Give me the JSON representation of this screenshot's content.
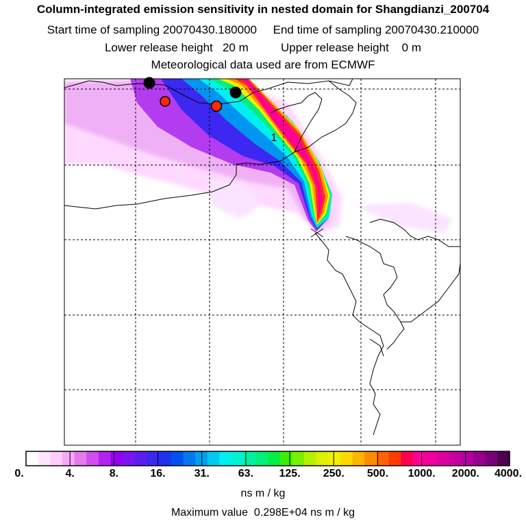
{
  "title": {
    "line1": "Column-integrated emission sensitivity in nested domain for Shangdianzi_200704",
    "line2": "Start time of sampling 20070430.180000     End time of sampling 20070430.210000",
    "line3": "Lower release height   20 m          Upper release height    0 m",
    "line4": "Meteorological data used are from ECMWF"
  },
  "map": {
    "plume_label": "1",
    "markers": [
      {
        "name": "black-dot-1",
        "color": "#000000"
      },
      {
        "name": "black-dot-2",
        "color": "#000000"
      },
      {
        "name": "red-dot-1",
        "color": "#ff2a00"
      },
      {
        "name": "red-dot-2",
        "color": "#ff2a00"
      }
    ]
  },
  "colorbar": {
    "tick_labels": [
      "0.",
      "4.",
      "8.",
      "16.",
      "31.",
      "63.",
      "125.",
      "250.",
      "500.",
      "1000.",
      "2000.",
      "4000."
    ],
    "colors": [
      "#ffffff",
      "#ffe6ff",
      "#ffccff",
      "#f7a8f7",
      "#e678f0",
      "#d24cf0",
      "#b422f0",
      "#9600f0",
      "#7a14f0",
      "#5a1ef0",
      "#3c28f0",
      "#1e32f0",
      "#0050f0",
      "#0078f0",
      "#00a0f0",
      "#00c8f0",
      "#00f0f0",
      "#00f0d2",
      "#00f0a0",
      "#00f078",
      "#00f046",
      "#3cf000",
      "#78f000",
      "#b4f000",
      "#dcf000",
      "#f0f000",
      "#ffd700",
      "#ffb400",
      "#ff8c00",
      "#ff6400",
      "#ff3c00",
      "#ff0050",
      "#ff0096",
      "#f000a0",
      "#dc00a0",
      "#c800a0",
      "#b400a0",
      "#96008c",
      "#780078",
      "#500050"
    ],
    "units": "ns m / kg",
    "max_value": "Maximum value  0.298E+04 ns m / kg"
  }
}
